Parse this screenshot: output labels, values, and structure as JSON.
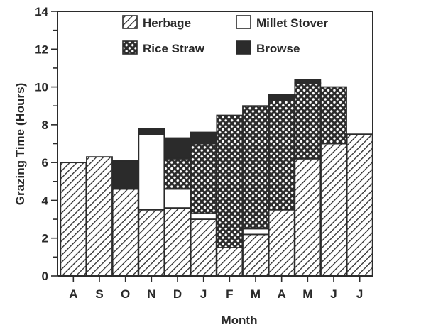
{
  "chart_data": {
    "type": "bar",
    "stacked": true,
    "title": "",
    "xlabel": "Month",
    "ylabel": "Grazing Time (Hours)",
    "ylim": [
      0,
      14
    ],
    "yticks": [
      0,
      2,
      4,
      6,
      8,
      10,
      12,
      14
    ],
    "y_minor_step": 1,
    "grid": false,
    "legend_position": "top-inside",
    "categories": [
      "A",
      "S",
      "O",
      "N",
      "D",
      "J",
      "F",
      "M",
      "A",
      "M",
      "J",
      "J"
    ],
    "series": [
      {
        "name": "Herbage",
        "pattern": "diagonal-hatch",
        "values": [
          6.0,
          6.3,
          4.6,
          3.5,
          3.6,
          3.0,
          1.5,
          2.2,
          3.5,
          6.2,
          7.0,
          7.5
        ]
      },
      {
        "name": "Millet Stover",
        "pattern": "white",
        "values": [
          0,
          0,
          0,
          4.0,
          1.0,
          0.3,
          0,
          0.3,
          0,
          0,
          0,
          0
        ]
      },
      {
        "name": "Rice Straw",
        "pattern": "crosshatch",
        "values": [
          0,
          0,
          0,
          0,
          1.6,
          3.7,
          7.0,
          6.5,
          5.8,
          4.0,
          3.0,
          0
        ]
      },
      {
        "name": "Browse",
        "pattern": "solid-dark",
        "values": [
          0,
          0,
          1.5,
          0.3,
          1.1,
          0.6,
          0,
          0,
          0.3,
          0.2,
          0,
          0
        ]
      }
    ],
    "colors": {
      "ink": "#2b2b2b",
      "background": "#ffffff"
    }
  },
  "legend": {
    "items": [
      {
        "label": "Herbage",
        "pattern": "diagonal-hatch"
      },
      {
        "label": "Millet Stover",
        "pattern": "white"
      },
      {
        "label": "Rice Straw",
        "pattern": "crosshatch"
      },
      {
        "label": "Browse",
        "pattern": "solid-dark"
      }
    ]
  },
  "axes": {
    "x_title": "Month",
    "y_title": "Grazing Time (Hours)"
  }
}
